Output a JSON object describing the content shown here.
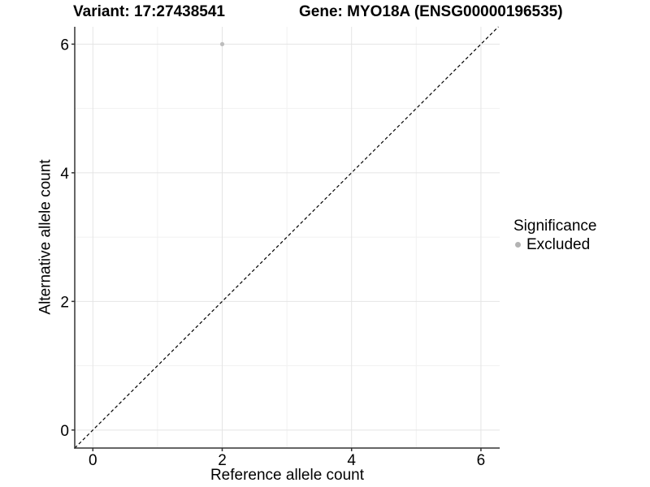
{
  "titles": {
    "left": "Variant: 17:27438541",
    "right": "Gene: MYO18A (ENSG00000196535)"
  },
  "chart_data": {
    "type": "scatter",
    "xlabel": "Reference allele count",
    "ylabel": "Alternative allele count",
    "xlim": [
      -0.28,
      6.29
    ],
    "ylim": [
      -0.28,
      6.27
    ],
    "x_ticks": [
      0,
      2,
      4,
      6
    ],
    "y_ticks": [
      0,
      2,
      4,
      6
    ],
    "x_minor_ticks": [
      1,
      3,
      5
    ],
    "y_minor_ticks": [
      1,
      3,
      5
    ],
    "grid": true,
    "points": [
      {
        "x": 2,
        "y": 6,
        "series": "Excluded"
      }
    ],
    "reference_line": {
      "type": "identity",
      "style": "dashed",
      "slope": 1,
      "intercept": 0
    },
    "legend": {
      "title": "Significance",
      "position": "right",
      "items": [
        {
          "label": "Excluded",
          "color": "#b3b3b3"
        }
      ]
    },
    "colors": {
      "point": "#bdbdbd",
      "grid_major": "#e4e4e4",
      "grid_minor": "#f1f1f1",
      "axis": "#333333",
      "tick": "#333333",
      "dashed_line": "#000000",
      "text": "#000000"
    }
  }
}
